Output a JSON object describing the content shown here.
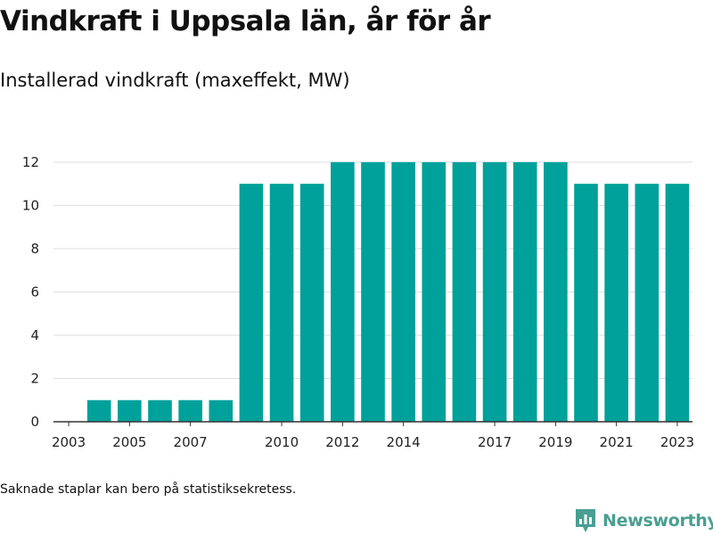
{
  "header": {
    "title": "Vindkraft i Uppsala län, år för år",
    "subtitle": "Installerad vindkraft (maxeffekt, MW)"
  },
  "footer": {
    "note": "Saknade staplar kan bero på statistiksekretess.",
    "brand": "Newsworthy",
    "brand_icon": "newsworthy-logo-icon"
  },
  "colors": {
    "bar": "#00a19a",
    "grid": "#dddddd",
    "axis": "#333333",
    "brand": "#4a9e92"
  },
  "chart_data": {
    "type": "bar",
    "title": "Vindkraft i Uppsala län, år för år",
    "subtitle": "Installerad vindkraft (maxeffekt, MW)",
    "xlabel": "",
    "ylabel": "",
    "categories": [
      2003,
      2004,
      2005,
      2006,
      2007,
      2008,
      2009,
      2010,
      2011,
      2012,
      2013,
      2014,
      2015,
      2016,
      2017,
      2018,
      2019,
      2020,
      2021,
      2022,
      2023
    ],
    "values": [
      0,
      1,
      1,
      1,
      1,
      1,
      11,
      11,
      11,
      12,
      12,
      12,
      12,
      12,
      12,
      12,
      12,
      11,
      11,
      11,
      11
    ],
    "x_tick_labels": [
      "2003",
      "2005",
      "2007",
      "2010",
      "2012",
      "2014",
      "2017",
      "2019",
      "2021",
      "2023"
    ],
    "y_ticks": [
      0,
      2,
      4,
      6,
      8,
      10,
      12
    ],
    "ylim": [
      0,
      12.9
    ],
    "grid": true,
    "legend": "none"
  }
}
